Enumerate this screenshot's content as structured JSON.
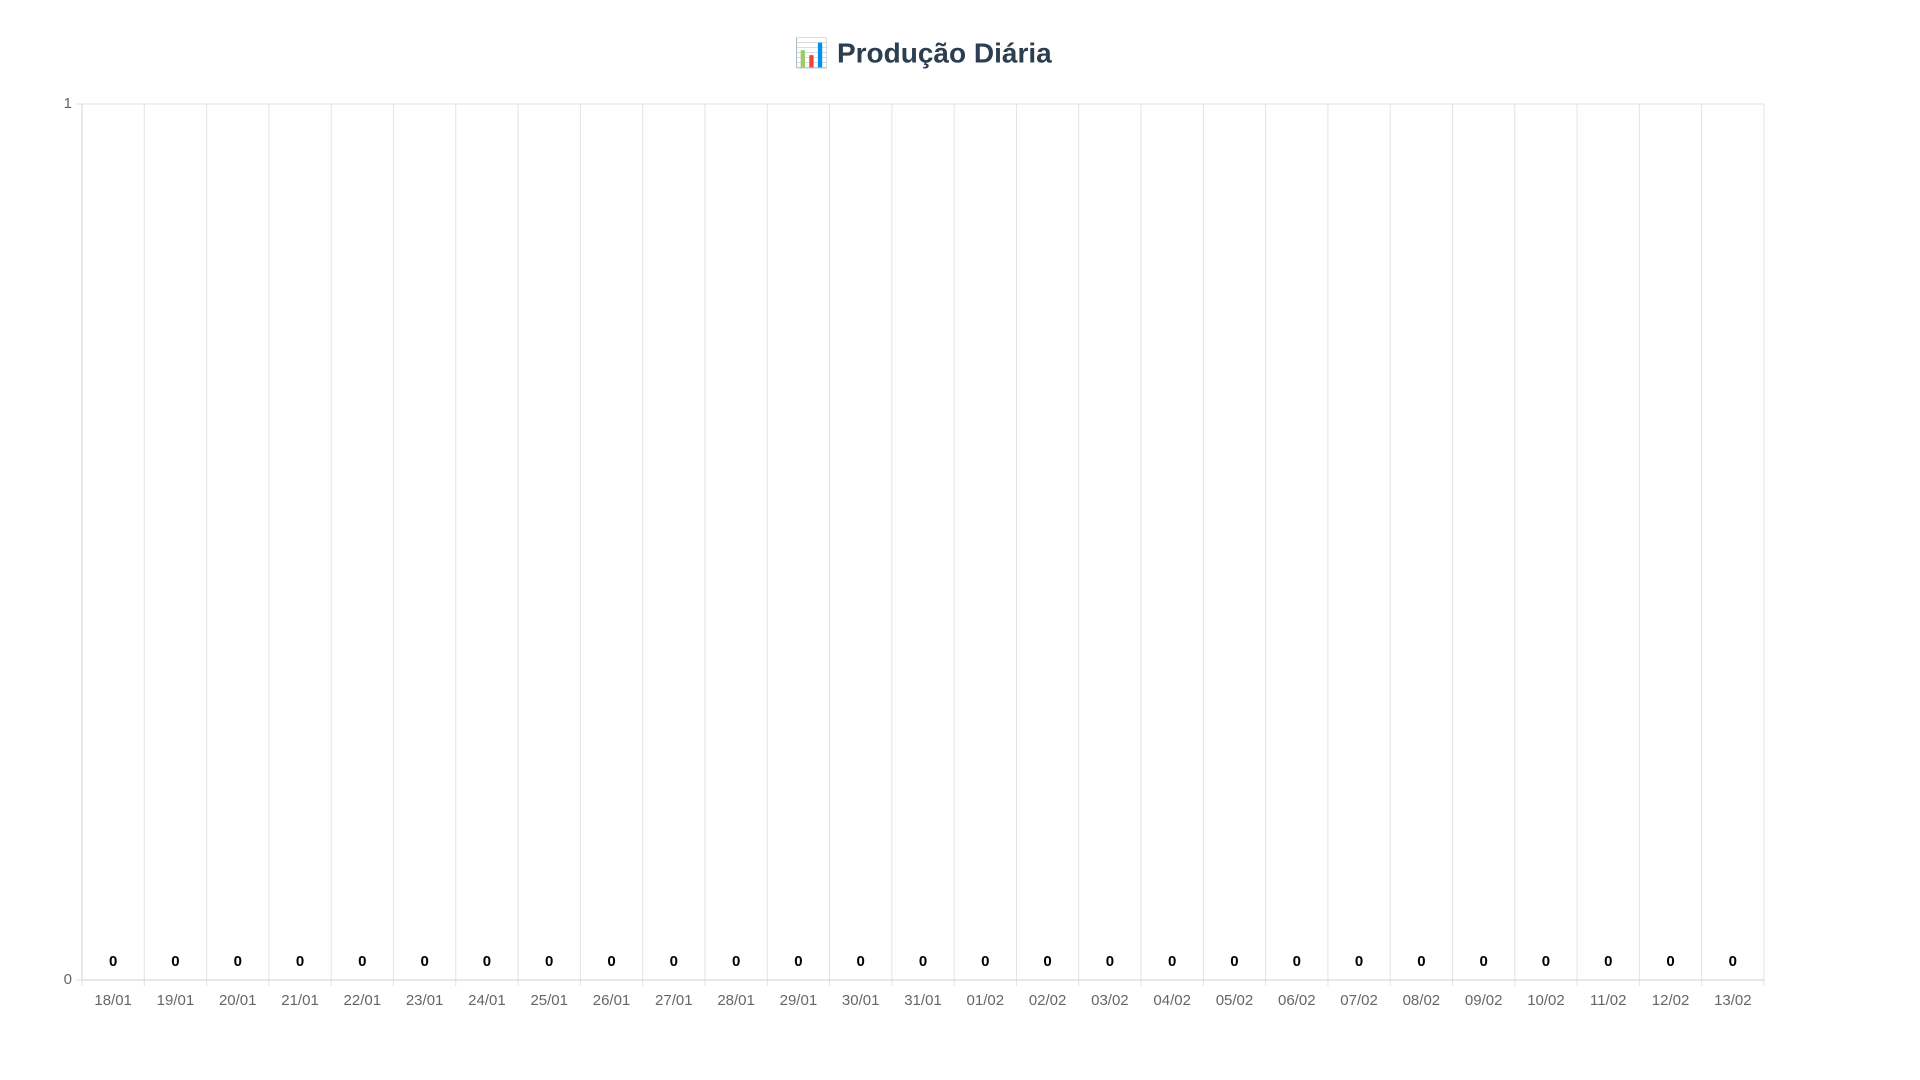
{
  "chart_data": {
    "type": "bar",
    "title": "📊 Produção Diária",
    "categories": [
      "18/01",
      "19/01",
      "20/01",
      "21/01",
      "22/01",
      "23/01",
      "24/01",
      "25/01",
      "26/01",
      "27/01",
      "28/01",
      "29/01",
      "30/01",
      "31/01",
      "01/02",
      "02/02",
      "03/02",
      "04/02",
      "05/02",
      "06/02",
      "07/02",
      "08/02",
      "09/02",
      "10/02",
      "11/02",
      "12/02",
      "13/02"
    ],
    "values": [
      0,
      0,
      0,
      0,
      0,
      0,
      0,
      0,
      0,
      0,
      0,
      0,
      0,
      0,
      0,
      0,
      0,
      0,
      0,
      0,
      0,
      0,
      0,
      0,
      0,
      0,
      0
    ],
    "color": "#4e79a7",
    "ylim": [
      0,
      1
    ],
    "yticks": [
      0,
      1
    ],
    "grid": true
  }
}
